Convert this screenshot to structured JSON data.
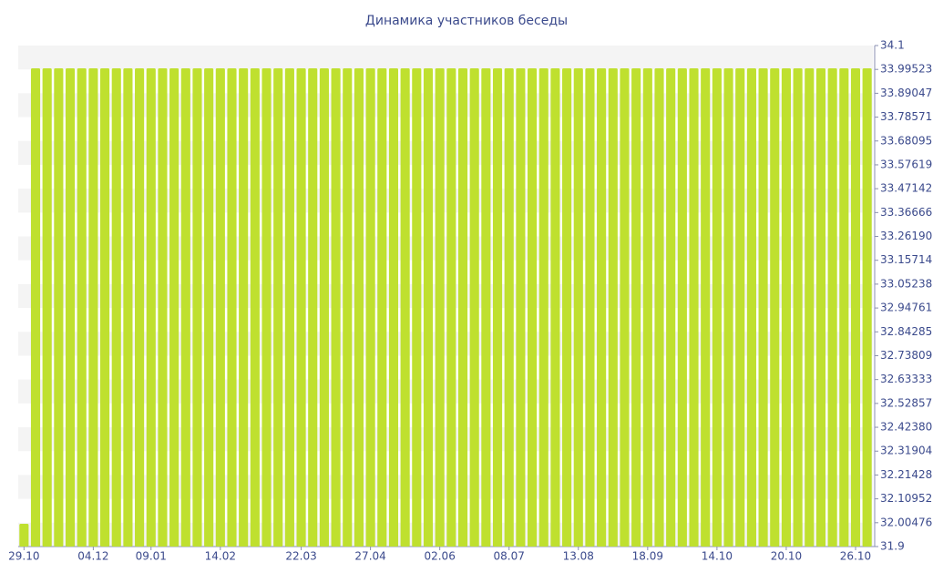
{
  "chart_data": {
    "type": "bar",
    "title": "Динамика участников беседы",
    "categories": [
      "29.10",
      null,
      null,
      null,
      null,
      null,
      "04.12",
      null,
      null,
      null,
      null,
      "09.01",
      null,
      null,
      null,
      null,
      null,
      "14.02",
      null,
      null,
      null,
      null,
      null,
      null,
      "22.03",
      null,
      null,
      null,
      null,
      null,
      "27.04",
      null,
      null,
      null,
      null,
      null,
      "02.06",
      null,
      null,
      null,
      null,
      null,
      "08.07",
      null,
      null,
      null,
      null,
      null,
      "13.08",
      null,
      null,
      null,
      null,
      null,
      "18.09",
      null,
      null,
      null,
      null,
      null,
      "14.10",
      null,
      null,
      null,
      null,
      null,
      "20.10",
      null,
      null,
      null,
      null,
      null,
      "26.10",
      null
    ],
    "values": [
      32,
      34,
      34,
      34,
      34,
      34,
      34,
      34,
      34,
      34,
      34,
      34,
      34,
      34,
      34,
      34,
      34,
      34,
      34,
      34,
      34,
      34,
      34,
      34,
      34,
      34,
      34,
      34,
      34,
      34,
      34,
      34,
      34,
      34,
      34,
      34,
      34,
      34,
      34,
      34,
      34,
      34,
      34,
      34,
      34,
      34,
      34,
      34,
      34,
      34,
      34,
      34,
      34,
      34,
      34,
      34,
      34,
      34,
      34,
      34,
      34,
      34,
      34,
      34,
      34,
      34,
      34,
      34,
      34,
      34,
      34,
      34,
      34,
      34
    ],
    "color": "#bfe02f",
    "ylim": [
      31.9,
      34.1
    ],
    "yticks": [
      31.9,
      32.00476,
      32.10952,
      32.21428,
      32.31904,
      {
        "value": 32.4238,
        "label": "32.42380"
      },
      32.52857,
      32.63333,
      32.73809,
      32.84285,
      32.94761,
      33.05238,
      33.15714,
      {
        "value": 33.2619,
        "label": "33.26190"
      },
      33.36666,
      33.47142,
      33.57619,
      33.68095,
      33.78571,
      33.89047,
      33.99523,
      34.1
    ],
    "grid": false
  }
}
